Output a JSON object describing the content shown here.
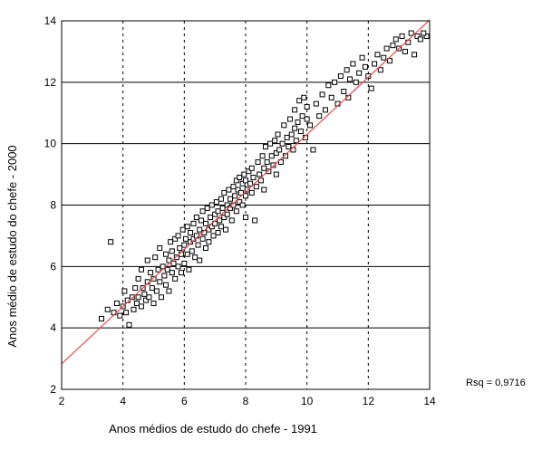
{
  "chart_data": {
    "type": "scatter",
    "title": "",
    "xlabel": "Anos médios de estudo do chefe - 1991",
    "ylabel": "Anos médio de estudo do chefe - 2000",
    "xlim": [
      2,
      14
    ],
    "ylim": [
      2,
      14
    ],
    "x_ticks": [
      "2",
      "4",
      "6",
      "8",
      "10",
      "12",
      "14"
    ],
    "y_ticks": [
      "2",
      "4",
      "6",
      "8",
      "10",
      "12",
      "14"
    ],
    "grid": "x dashed, y solid",
    "annotation": "Rsq = 0,9716",
    "marker": "open square",
    "colors": {
      "points": "#000000",
      "fit_line": "#e84a4a",
      "grid": "#000000"
    },
    "fit_line": {
      "x": [
        2,
        14
      ],
      "y": [
        2.83,
        14.03
      ]
    },
    "series": [
      {
        "points": [
          [
            3.3,
            4.3
          ],
          [
            3.5,
            4.6
          ],
          [
            3.6,
            6.8
          ],
          [
            3.7,
            4.5
          ],
          [
            3.8,
            4.8
          ],
          [
            3.9,
            4.4
          ],
          [
            4.0,
            4.7
          ],
          [
            4.05,
            5.2
          ],
          [
            4.1,
            4.5
          ],
          [
            4.15,
            4.9
          ],
          [
            4.2,
            4.1
          ],
          [
            4.3,
            5.0
          ],
          [
            4.35,
            4.6
          ],
          [
            4.4,
            5.3
          ],
          [
            4.45,
            4.8
          ],
          [
            4.5,
            5.6
          ],
          [
            4.5,
            5.0
          ],
          [
            4.6,
            4.7
          ],
          [
            4.6,
            5.9
          ],
          [
            4.65,
            5.3
          ],
          [
            4.7,
            5.1
          ],
          [
            4.75,
            4.9
          ],
          [
            4.8,
            5.5
          ],
          [
            4.8,
            6.2
          ],
          [
            4.85,
            5.0
          ],
          [
            4.9,
            5.8
          ],
          [
            4.95,
            5.3
          ],
          [
            5.0,
            5.6
          ],
          [
            5.0,
            4.8
          ],
          [
            5.05,
            6.3
          ],
          [
            5.1,
            5.2
          ],
          [
            5.15,
            5.9
          ],
          [
            5.2,
            5.5
          ],
          [
            5.2,
            6.6
          ],
          [
            5.25,
            5.0
          ],
          [
            5.3,
            6.0
          ],
          [
            5.35,
            5.7
          ],
          [
            5.4,
            5.4
          ],
          [
            5.4,
            6.4
          ],
          [
            5.45,
            5.9
          ],
          [
            5.5,
            6.2
          ],
          [
            5.5,
            5.2
          ],
          [
            5.55,
            6.8
          ],
          [
            5.6,
            5.8
          ],
          [
            5.6,
            6.5
          ],
          [
            5.65,
            6.1
          ],
          [
            5.7,
            5.6
          ],
          [
            5.7,
            6.9
          ],
          [
            5.75,
            6.3
          ],
          [
            5.8,
            6.0
          ],
          [
            5.8,
            7.0
          ],
          [
            5.85,
            6.6
          ],
          [
            5.9,
            5.8
          ],
          [
            5.9,
            6.4
          ],
          [
            5.95,
            7.2
          ],
          [
            6.0,
            6.7
          ],
          [
            6.0,
            6.1
          ],
          [
            6.05,
            6.9
          ],
          [
            6.1,
            6.4
          ],
          [
            6.1,
            7.3
          ],
          [
            6.15,
            5.9
          ],
          [
            6.2,
            6.8
          ],
          [
            6.2,
            7.1
          ],
          [
            6.25,
            6.5
          ],
          [
            6.3,
            7.4
          ],
          [
            6.3,
            6.9
          ],
          [
            6.35,
            6.3
          ],
          [
            6.4,
            7.0
          ],
          [
            6.4,
            7.6
          ],
          [
            6.45,
            6.7
          ],
          [
            6.5,
            7.2
          ],
          [
            6.5,
            6.2
          ],
          [
            6.55,
            7.5
          ],
          [
            6.6,
            6.9
          ],
          [
            6.6,
            7.8
          ],
          [
            6.65,
            7.1
          ],
          [
            6.7,
            6.6
          ],
          [
            6.7,
            7.4
          ],
          [
            6.75,
            7.9
          ],
          [
            6.8,
            7.2
          ],
          [
            6.8,
            6.8
          ],
          [
            6.85,
            7.6
          ],
          [
            6.9,
            7.3
          ],
          [
            6.9,
            8.0
          ],
          [
            6.95,
            7.0
          ],
          [
            7.0,
            7.7
          ],
          [
            7.0,
            7.4
          ],
          [
            7.05,
            8.1
          ],
          [
            7.1,
            7.1
          ],
          [
            7.1,
            7.8
          ],
          [
            7.15,
            7.5
          ],
          [
            7.2,
            8.2
          ],
          [
            7.2,
            7.3
          ],
          [
            7.25,
            7.9
          ],
          [
            7.3,
            7.6
          ],
          [
            7.3,
            8.4
          ],
          [
            7.35,
            7.2
          ],
          [
            7.4,
            8.0
          ],
          [
            7.4,
            7.7
          ],
          [
            7.45,
            8.5
          ],
          [
            7.5,
            7.9
          ],
          [
            7.5,
            8.2
          ],
          [
            7.55,
            7.5
          ],
          [
            7.6,
            8.6
          ],
          [
            7.6,
            8.0
          ],
          [
            7.65,
            8.3
          ],
          [
            7.7,
            8.8
          ],
          [
            7.7,
            7.8
          ],
          [
            7.75,
            8.5
          ],
          [
            7.8,
            8.1
          ],
          [
            7.8,
            8.9
          ],
          [
            7.85,
            8.4
          ],
          [
            7.9,
            8.0
          ],
          [
            7.9,
            8.7
          ],
          [
            7.95,
            9.0
          ],
          [
            8.0,
            8.3
          ],
          [
            8.0,
            8.8
          ],
          [
            8.0,
            7.6
          ],
          [
            8.05,
            8.5
          ],
          [
            8.1,
            9.1
          ],
          [
            8.15,
            8.7
          ],
          [
            8.2,
            8.4
          ],
          [
            8.2,
            9.2
          ],
          [
            8.25,
            8.9
          ],
          [
            8.3,
            7.5
          ],
          [
            8.35,
            8.6
          ],
          [
            8.4,
            9.4
          ],
          [
            8.45,
            9.0
          ],
          [
            8.5,
            8.8
          ],
          [
            8.55,
            9.6
          ],
          [
            8.6,
            9.2
          ],
          [
            8.6,
            8.5
          ],
          [
            8.65,
            9.9
          ],
          [
            8.7,
            9.4
          ],
          [
            8.75,
            9.1
          ],
          [
            8.8,
            10.0
          ],
          [
            8.85,
            9.6
          ],
          [
            8.9,
            9.3
          ],
          [
            8.95,
            10.1
          ],
          [
            9.0,
            9.7
          ],
          [
            9.0,
            9.0
          ],
          [
            9.05,
            10.3
          ],
          [
            9.1,
            9.8
          ],
          [
            9.15,
            9.4
          ],
          [
            9.2,
            10.0
          ],
          [
            9.25,
            10.6
          ],
          [
            9.3,
            9.6
          ],
          [
            9.35,
            10.2
          ],
          [
            9.4,
            9.9
          ],
          [
            9.45,
            10.8
          ],
          [
            9.5,
            10.3
          ],
          [
            9.55,
            9.8
          ],
          [
            9.6,
            10.5
          ],
          [
            9.6,
            11.1
          ],
          [
            9.65,
            10.1
          ],
          [
            9.7,
            10.7
          ],
          [
            9.75,
            11.4
          ],
          [
            9.8,
            10.4
          ],
          [
            9.85,
            10.9
          ],
          [
            9.9,
            11.5
          ],
          [
            9.95,
            10.2
          ],
          [
            10.0,
            10.8
          ],
          [
            10.0,
            11.2
          ],
          [
            10.1,
            10.6
          ],
          [
            10.2,
            9.8
          ],
          [
            10.3,
            11.3
          ],
          [
            10.4,
            10.9
          ],
          [
            10.5,
            11.6
          ],
          [
            10.6,
            11.1
          ],
          [
            10.7,
            11.9
          ],
          [
            10.8,
            11.5
          ],
          [
            10.9,
            12.0
          ],
          [
            11.0,
            11.3
          ],
          [
            11.1,
            12.2
          ],
          [
            11.2,
            11.7
          ],
          [
            11.3,
            12.4
          ],
          [
            11.35,
            11.5
          ],
          [
            11.4,
            12.1
          ],
          [
            11.5,
            12.6
          ],
          [
            11.6,
            12.0
          ],
          [
            11.7,
            12.3
          ],
          [
            11.8,
            12.8
          ],
          [
            11.9,
            12.5
          ],
          [
            12.0,
            12.2
          ],
          [
            12.1,
            11.8
          ],
          [
            12.2,
            12.6
          ],
          [
            12.3,
            12.9
          ],
          [
            12.4,
            12.4
          ],
          [
            12.5,
            12.8
          ],
          [
            12.6,
            13.1
          ],
          [
            12.7,
            12.7
          ],
          [
            12.8,
            13.2
          ],
          [
            12.9,
            13.4
          ],
          [
            13.0,
            13.1
          ],
          [
            13.1,
            13.5
          ],
          [
            13.2,
            13.0
          ],
          [
            13.3,
            13.3
          ],
          [
            13.4,
            13.6
          ],
          [
            13.5,
            12.9
          ],
          [
            13.6,
            13.5
          ],
          [
            13.7,
            13.4
          ],
          [
            13.9,
            13.5
          ],
          [
            13.8,
            13.6
          ]
        ]
      }
    ]
  }
}
